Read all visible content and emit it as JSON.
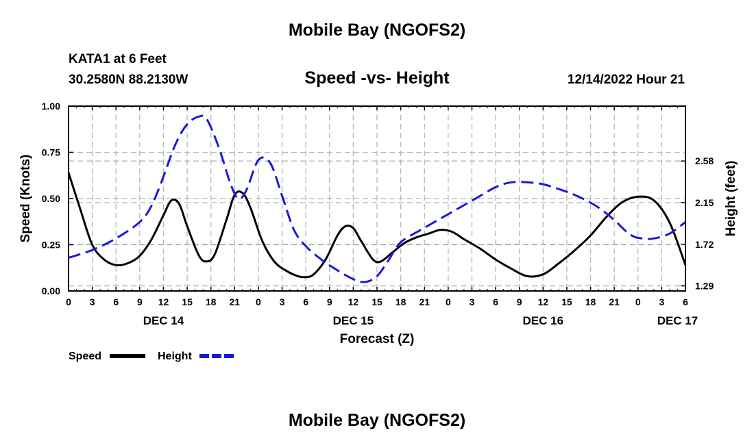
{
  "page": {
    "title_top": "Mobile Bay (NGOFS2)",
    "title_bottom": "Mobile Bay (NGOFS2)",
    "station": "KATA1 at 6 Feet",
    "coords": "30.2580N  88.2130W",
    "subtitle": "Speed -vs- Height",
    "timestamp": "12/14/2022 Hour 21"
  },
  "colors": {
    "speed": "#000000",
    "height": "#1a1ad6",
    "grid": "#b4b4b4"
  },
  "chart_data": {
    "type": "line",
    "title": "Speed -vs- Height",
    "xlabel": "Forecast (Z)",
    "ylabel": "Speed (Knots)",
    "y2label": "Height (feet)",
    "xlim": [
      0,
      78
    ],
    "ylim": [
      0,
      1.0
    ],
    "y2lim": [
      1.2373,
      3.1473
    ],
    "x_ticks": [
      {
        "h": 0,
        "label": "0"
      },
      {
        "h": 3,
        "label": "3"
      },
      {
        "h": 6,
        "label": "6"
      },
      {
        "h": 9,
        "label": "9"
      },
      {
        "h": 12,
        "label": "12"
      },
      {
        "h": 15,
        "label": "15"
      },
      {
        "h": 18,
        "label": "18"
      },
      {
        "h": 21,
        "label": "21"
      },
      {
        "h": 24,
        "label": "0"
      },
      {
        "h": 27,
        "label": "3"
      },
      {
        "h": 30,
        "label": "6"
      },
      {
        "h": 33,
        "label": "9"
      },
      {
        "h": 36,
        "label": "12"
      },
      {
        "h": 39,
        "label": "15"
      },
      {
        "h": 42,
        "label": "18"
      },
      {
        "h": 45,
        "label": "21"
      },
      {
        "h": 48,
        "label": "0"
      },
      {
        "h": 51,
        "label": "3"
      },
      {
        "h": 54,
        "label": "6"
      },
      {
        "h": 57,
        "label": "9"
      },
      {
        "h": 60,
        "label": "12"
      },
      {
        "h": 63,
        "label": "15"
      },
      {
        "h": 66,
        "label": "18"
      },
      {
        "h": 69,
        "label": "21"
      },
      {
        "h": 72,
        "label": "0"
      },
      {
        "h": 75,
        "label": "3"
      },
      {
        "h": 78,
        "label": "6"
      }
    ],
    "date_labels": [
      {
        "h": 12,
        "label": "DEC 14"
      },
      {
        "h": 36,
        "label": "DEC 15"
      },
      {
        "h": 60,
        "label": "DEC 16"
      },
      {
        "h": 77,
        "label": "DEC 17"
      }
    ],
    "y_ticks": [
      "0.00",
      "0.25",
      "0.50",
      "0.75",
      "1.00"
    ],
    "y_tick_values": [
      0,
      0.25,
      0.5,
      0.75,
      1.0
    ],
    "y2_ticks": [
      "1.29",
      "1.72",
      "2.15",
      "2.58"
    ],
    "y2_tick_values": [
      1.29,
      1.72,
      2.15,
      2.58
    ],
    "series": [
      {
        "name": "Speed",
        "axis": "left",
        "x": [
          0,
          1.5,
          3,
          4.5,
          6,
          7.5,
          9,
          10.5,
          12,
          13,
          14,
          15,
          16.5,
          17.5,
          18.5,
          20,
          21,
          22,
          23,
          24.5,
          26,
          27.5,
          29,
          30,
          31,
          32.5,
          34,
          35,
          36,
          37,
          38.5,
          39.5,
          41,
          42.5,
          44,
          45.5,
          47,
          48.5,
          50,
          52,
          54,
          56,
          58,
          60,
          62,
          64,
          66,
          68,
          70,
          72,
          74,
          76,
          78
        ],
        "values": [
          0.64,
          0.44,
          0.25,
          0.17,
          0.14,
          0.15,
          0.19,
          0.28,
          0.41,
          0.49,
          0.47,
          0.35,
          0.19,
          0.16,
          0.2,
          0.39,
          0.52,
          0.53,
          0.45,
          0.27,
          0.16,
          0.11,
          0.08,
          0.075,
          0.09,
          0.17,
          0.3,
          0.35,
          0.34,
          0.27,
          0.17,
          0.16,
          0.21,
          0.26,
          0.29,
          0.31,
          0.33,
          0.32,
          0.28,
          0.23,
          0.17,
          0.12,
          0.08,
          0.09,
          0.15,
          0.22,
          0.3,
          0.4,
          0.48,
          0.51,
          0.49,
          0.37,
          0.14
        ]
      },
      {
        "name": "Height",
        "axis": "right",
        "x": [
          0,
          3,
          6,
          9,
          10.5,
          12,
          13.5,
          15,
          16.5,
          17.5,
          19,
          20.5,
          21.5,
          22.5,
          24,
          25.5,
          27,
          28.5,
          30,
          32,
          34,
          36,
          37.5,
          39,
          40.5,
          42,
          45,
          48,
          51,
          54,
          56,
          58,
          60,
          62,
          64,
          66,
          67.5,
          69,
          71,
          72.5,
          74,
          76,
          78
        ],
        "values": [
          1.58,
          1.66,
          1.78,
          1.95,
          2.12,
          2.42,
          2.75,
          2.96,
          3.04,
          3.01,
          2.72,
          2.34,
          2.19,
          2.28,
          2.59,
          2.56,
          2.22,
          1.87,
          1.7,
          1.56,
          1.45,
          1.36,
          1.33,
          1.39,
          1.56,
          1.74,
          1.89,
          2.03,
          2.17,
          2.31,
          2.36,
          2.36,
          2.34,
          2.29,
          2.23,
          2.15,
          2.07,
          1.97,
          1.82,
          1.78,
          1.78,
          1.83,
          1.95
        ]
      }
    ],
    "legend": [
      {
        "label": "Speed",
        "series": "Speed"
      },
      {
        "label": "Height",
        "series": "Height"
      }
    ],
    "grid": true
  }
}
